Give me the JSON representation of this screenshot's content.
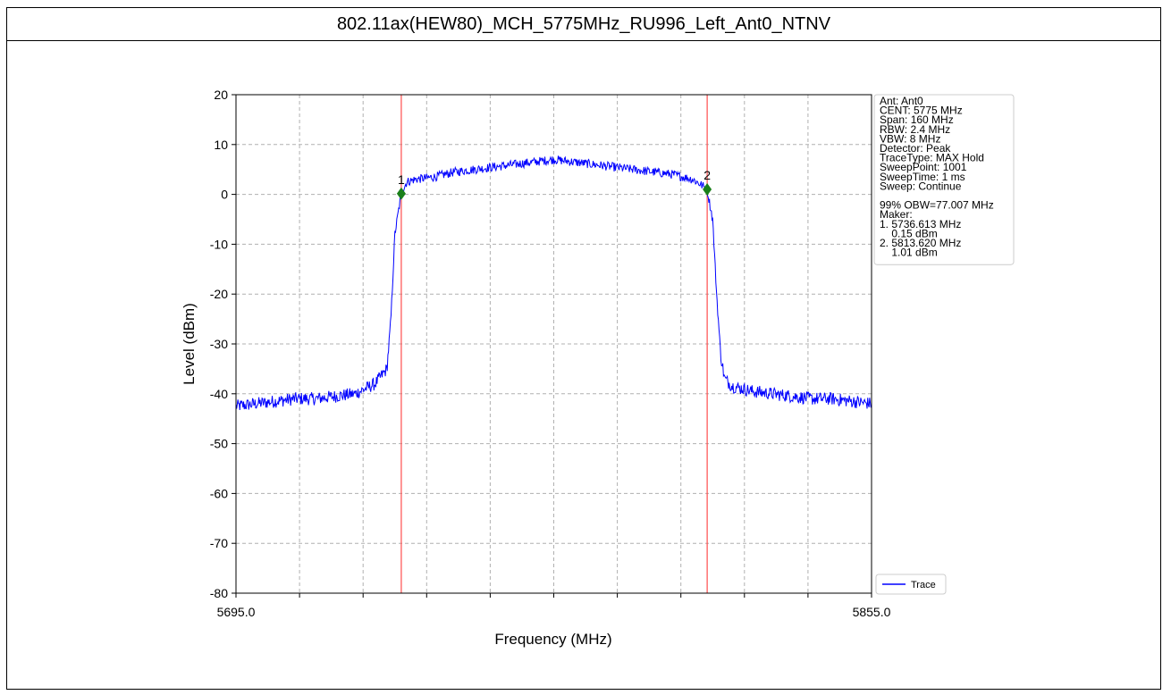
{
  "page_title": "802.11ax(HEW80)_MCH_5775MHz_RU996_Left_Ant0_NTNV",
  "chart_data": {
    "type": "line",
    "title": "802.11ax(HEW80)_MCH_5775MHz_RU996_Left_Ant0_NTNV",
    "xlabel": "Frequency (MHz)",
    "ylabel": "Level (dBm)",
    "xlim": [
      5695.0,
      5855.0
    ],
    "ylim": [
      -80,
      20
    ],
    "x_tick_labels": [
      "5695.0",
      "5855.0"
    ],
    "x_minor_ticks": [
      5711,
      5727,
      5743,
      5759,
      5775,
      5791,
      5807,
      5823,
      5839
    ],
    "y_ticks": [
      20,
      10,
      0,
      -10,
      -20,
      -30,
      -40,
      -50,
      -60,
      -70,
      -80
    ],
    "grid": true,
    "line_color": "#0000ff",
    "marker_line_color": "#ff4d4d",
    "marker_color": "#1a7f1a",
    "series": [
      {
        "name": "Trace",
        "x": [
          5695,
          5700,
          5705,
          5710,
          5715,
          5720,
          5725,
          5730,
          5733,
          5734,
          5735,
          5736.6,
          5738,
          5740,
          5745,
          5750,
          5755,
          5760,
          5765,
          5770,
          5775,
          5780,
          5785,
          5790,
          5795,
          5800,
          5805,
          5810,
          5812,
          5813.6,
          5815,
          5816,
          5817,
          5818,
          5820,
          5825,
          5830,
          5835,
          5840,
          5845,
          5850,
          5855
        ],
        "values": [
          -42.5,
          -42,
          -41.5,
          -41,
          -41,
          -40.5,
          -40,
          -38,
          -35,
          -25,
          -8,
          0.15,
          2.5,
          3,
          3.5,
          4.5,
          5,
          5.5,
          6,
          6.5,
          7,
          6.5,
          6,
          5.5,
          5,
          4.5,
          4,
          3,
          2,
          1.01,
          -5,
          -20,
          -32,
          -37,
          -38.5,
          -39.5,
          -40,
          -40.5,
          -41,
          -41,
          -41.5,
          -42
        ]
      }
    ],
    "markers": [
      {
        "label": "1",
        "x": 5736.613,
        "y": 0.15
      },
      {
        "label": "2",
        "x": 5813.62,
        "y": 1.01
      }
    ],
    "info_box": [
      "Ant: Ant0",
      "CENT: 5775 MHz",
      "Span: 160 MHz",
      "RBW: 2.4 MHz",
      "VBW: 8 MHz",
      "Detector: Peak",
      "TraceType: MAX Hold",
      "SweepPoint: 1001",
      "SweepTime: 1 ms",
      "Sweep: Continue",
      "",
      "99% OBW=77.007 MHz",
      "Maker:",
      "1. 5736.613 MHz",
      "    0.15 dBm",
      "2. 5813.620 MHz",
      "    1.01 dBm"
    ],
    "legend": {
      "label": "Trace",
      "position": "bottom-right"
    }
  }
}
